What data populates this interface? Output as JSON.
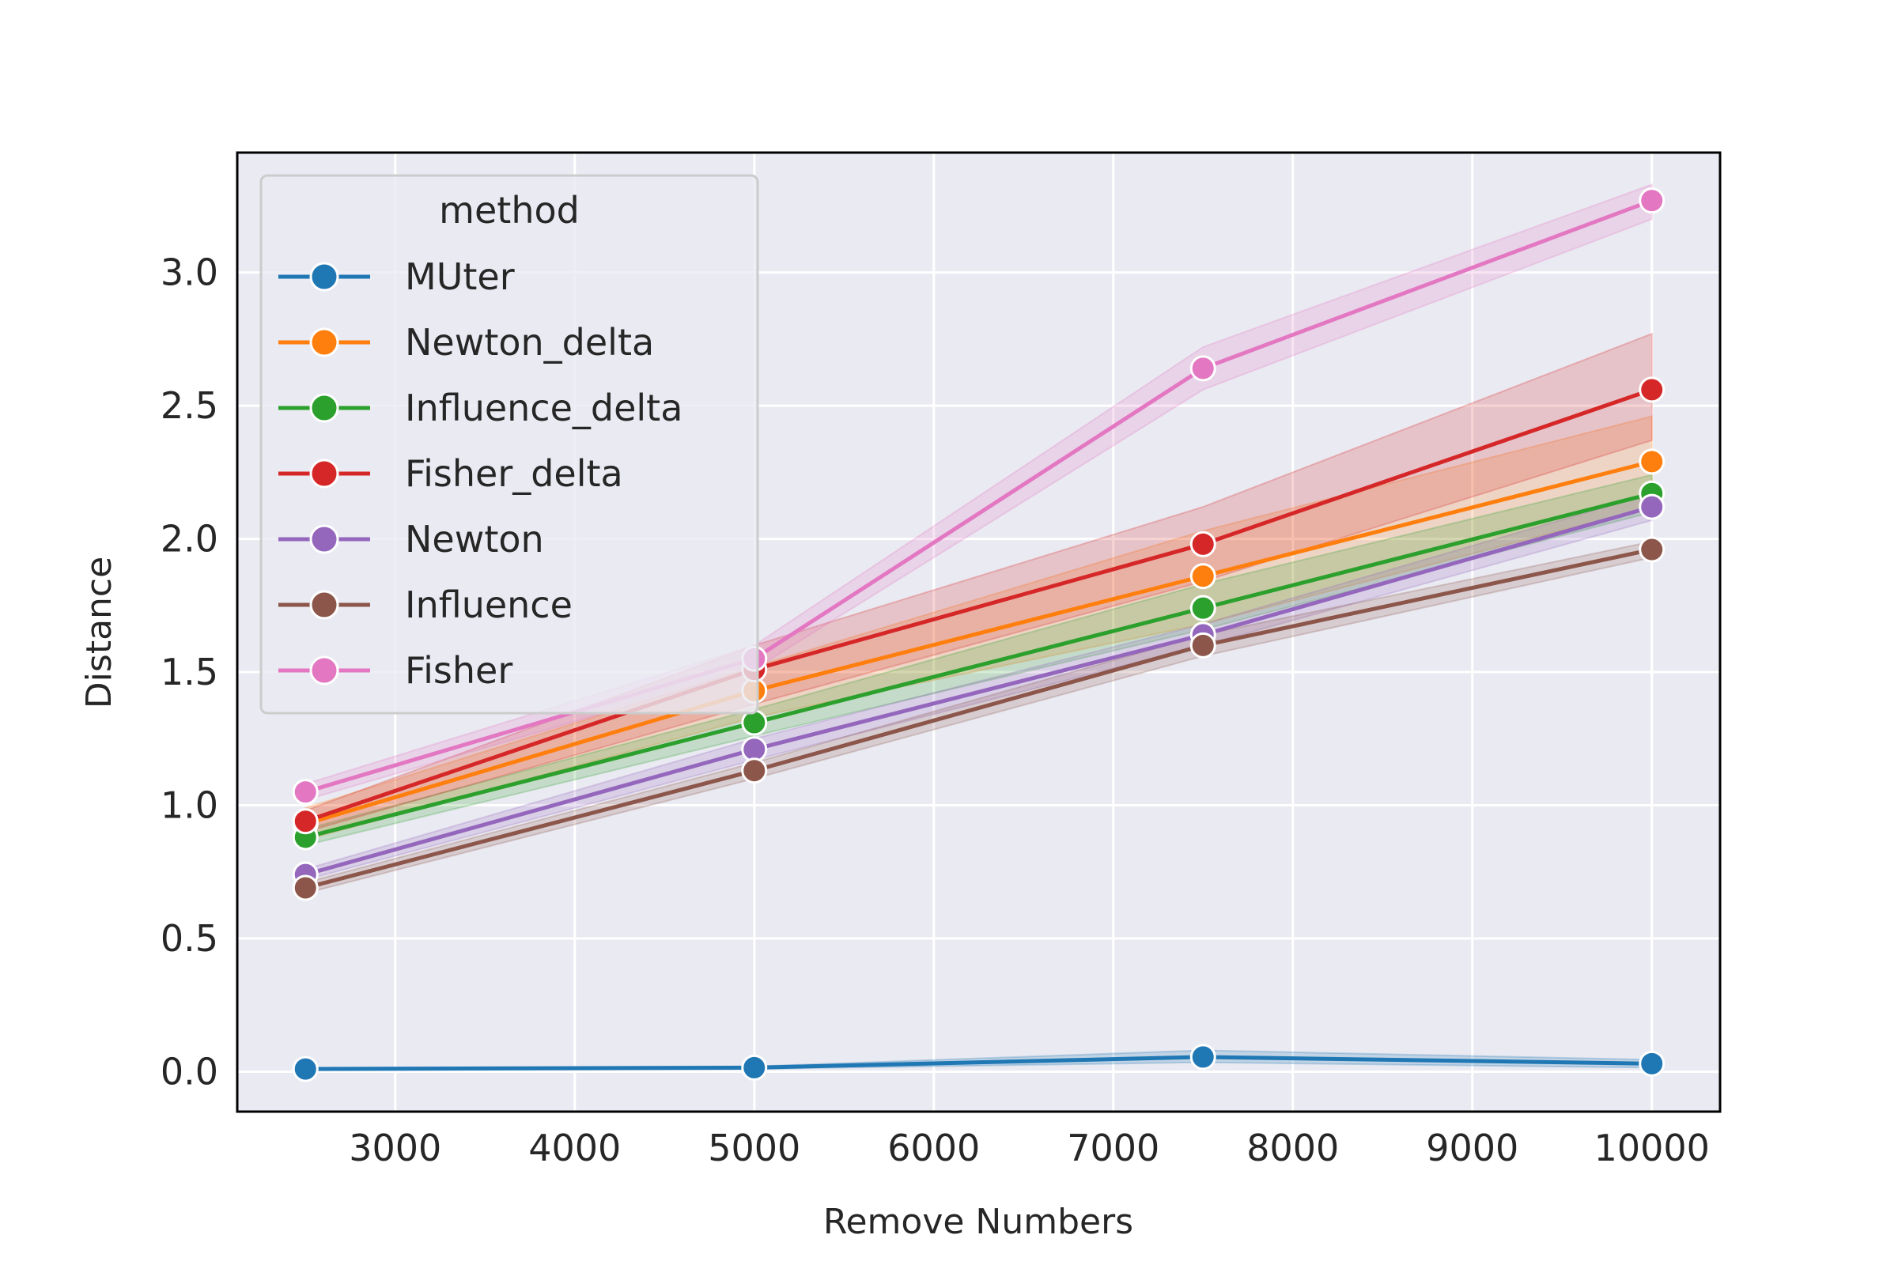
{
  "chart_data": {
    "type": "line",
    "title": "",
    "xlabel": "Remove Numbers",
    "ylabel": "Distance",
    "xlim": [
      2120,
      10380
    ],
    "ylim": [
      -0.15,
      3.45
    ],
    "xticks": [
      3000,
      4000,
      5000,
      6000,
      7000,
      8000,
      9000,
      10000
    ],
    "xtick_labels": [
      "3000",
      "4000",
      "5000",
      "6000",
      "7000",
      "8000",
      "9000",
      "10000"
    ],
    "yticks": [
      0.0,
      0.5,
      1.0,
      1.5,
      2.0,
      2.5,
      3.0
    ],
    "ytick_labels": [
      "0.0",
      "0.5",
      "1.0",
      "1.5",
      "2.0",
      "2.5",
      "3.0"
    ],
    "grid": true,
    "background": "#eaeaf2",
    "legend": {
      "title": "method",
      "placement": "upper-left"
    },
    "x": [
      2500,
      5000,
      7500,
      10000
    ],
    "series": [
      {
        "name": "MUter",
        "color": "#1f77b4",
        "values": [
          0.01,
          0.015,
          0.055,
          0.03
        ],
        "lower": [
          0.005,
          0.01,
          0.035,
          0.015
        ],
        "upper": [
          0.015,
          0.02,
          0.08,
          0.045
        ]
      },
      {
        "name": "Newton_delta",
        "color": "#ff7f0e",
        "values": [
          0.93,
          1.43,
          1.86,
          2.29
        ],
        "lower": [
          0.87,
          1.33,
          1.68,
          2.12
        ],
        "upper": [
          0.99,
          1.52,
          2.03,
          2.46
        ]
      },
      {
        "name": "Influence_delta",
        "color": "#2ca02c",
        "values": [
          0.88,
          1.31,
          1.74,
          2.17
        ],
        "lower": [
          0.85,
          1.26,
          1.66,
          2.1
        ],
        "upper": [
          0.91,
          1.36,
          1.83,
          2.24
        ]
      },
      {
        "name": "Fisher_delta",
        "color": "#d62728",
        "values": [
          0.94,
          1.51,
          1.98,
          2.56
        ],
        "lower": [
          0.9,
          1.38,
          1.84,
          2.37
        ],
        "upper": [
          0.98,
          1.6,
          2.12,
          2.77
        ]
      },
      {
        "name": "Newton",
        "color": "#9467bd",
        "values": [
          0.74,
          1.21,
          1.64,
          2.12
        ],
        "lower": [
          0.72,
          1.17,
          1.6,
          2.07
        ],
        "upper": [
          0.76,
          1.25,
          1.68,
          2.17
        ]
      },
      {
        "name": "Influence",
        "color": "#8c564b",
        "values": [
          0.69,
          1.13,
          1.6,
          1.96
        ],
        "lower": [
          0.67,
          1.1,
          1.56,
          1.93
        ],
        "upper": [
          0.71,
          1.16,
          1.64,
          1.99
        ]
      },
      {
        "name": "Fisher",
        "color": "#e377c2",
        "values": [
          1.05,
          1.55,
          2.64,
          3.27
        ],
        "lower": [
          1.02,
          1.51,
          2.56,
          3.2
        ],
        "upper": [
          1.08,
          1.6,
          2.72,
          3.33
        ]
      }
    ]
  }
}
